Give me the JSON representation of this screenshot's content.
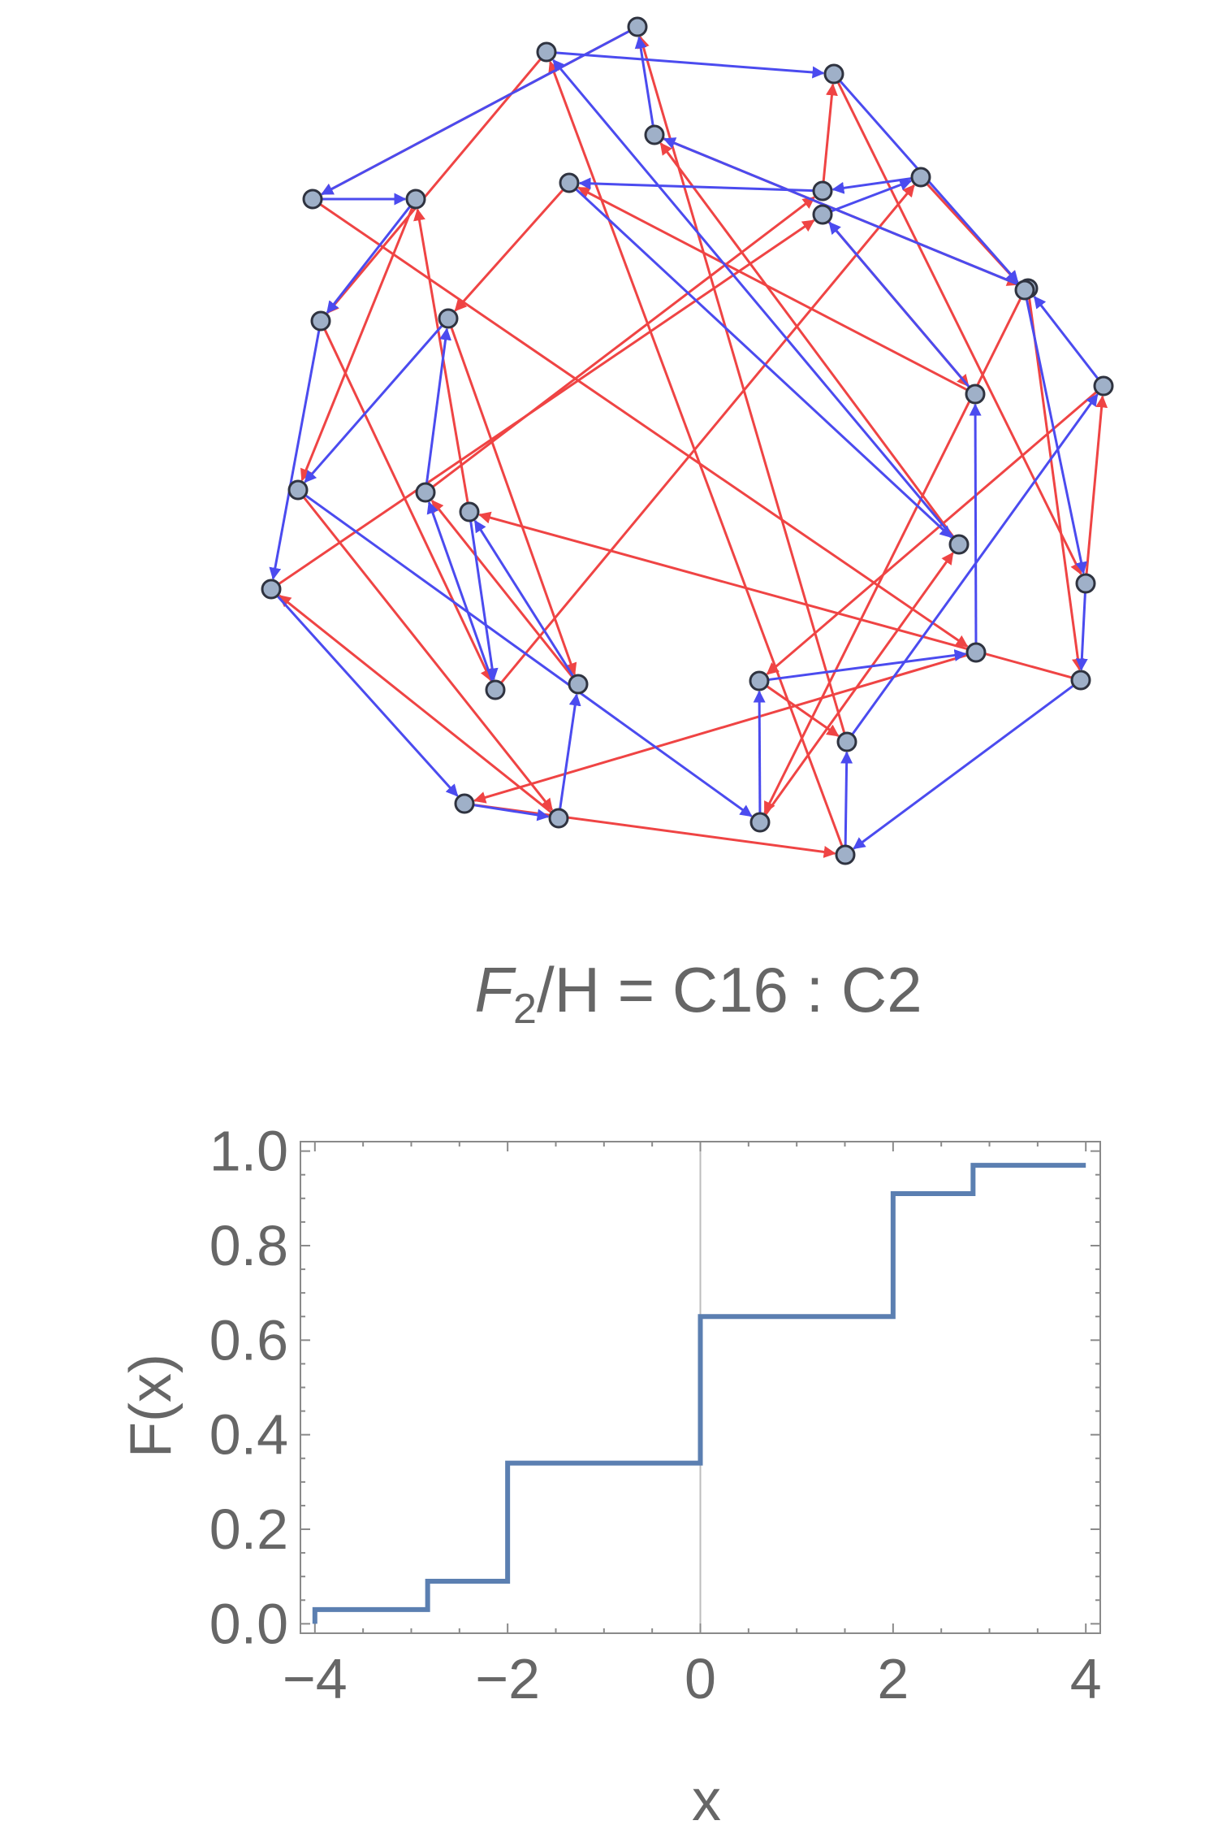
{
  "graph": {
    "title_italic": "F",
    "title_sub": "2",
    "title_rest": "/H = C16 : C2",
    "vertex_count": 32,
    "colors": {
      "generator_a": "#ef4444",
      "generator_b": "#4b4bef",
      "vertex_fill": "#9fb0c8",
      "vertex_stroke": "#2f3340"
    }
  },
  "chart_data": {
    "type": "line",
    "style": "step",
    "title": "",
    "xlabel": "x",
    "ylabel": "F(x)",
    "xlim": [
      -4.15,
      4.15
    ],
    "ylim": [
      -0.02,
      1.02
    ],
    "xticks": [
      -4,
      -2,
      0,
      2,
      4
    ],
    "xtick_labels": [
      "−4",
      "−2",
      "0",
      "2",
      "4"
    ],
    "yticks": [
      0.0,
      0.2,
      0.4,
      0.6,
      0.8,
      1.0
    ],
    "ytick_labels": [
      "0.0",
      "0.2",
      "0.4",
      "0.6",
      "0.8",
      "1.0"
    ],
    "grid": false,
    "color": "#5b7fb1",
    "x": [
      -4,
      -2.83,
      -2,
      0,
      2,
      2.83,
      4
    ],
    "y": [
      0.03,
      0.09,
      0.34,
      0.65,
      0.91,
      0.97,
      0.97
    ]
  }
}
